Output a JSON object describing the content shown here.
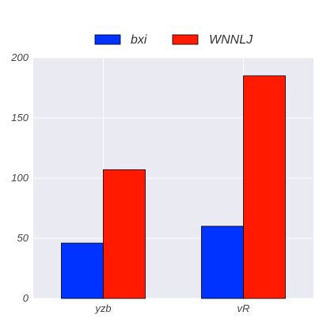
{
  "chart_data": {
    "type": "bar",
    "categories": [
      "yzb",
      "vR"
    ],
    "series": [
      {
        "name": "bxi",
        "values": [
          46,
          60
        ],
        "color": "#0033ff"
      },
      {
        "name": "WNNLJ",
        "values": [
          107,
          185
        ],
        "color": "#ff1a00"
      }
    ],
    "title": "",
    "xlabel": "",
    "ylabel": "",
    "ylim": [
      0,
      200
    ],
    "yticks": [
      0,
      50,
      100,
      150,
      200
    ],
    "grid": true,
    "background": "#eaeaf2",
    "legend": "top-center"
  }
}
